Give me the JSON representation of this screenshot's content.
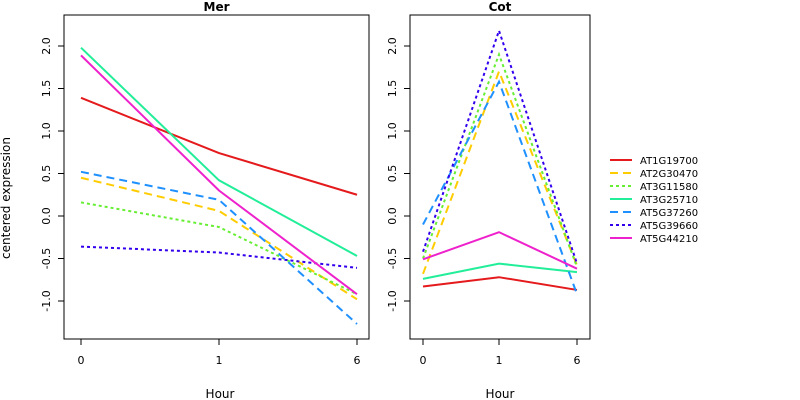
{
  "chart_data": {
    "type": "line",
    "ylabel": "centered expression",
    "x_categories": [
      "0",
      "1",
      "6"
    ],
    "ylim": [
      -1.4,
      2.3
    ],
    "yticks": [
      -1.0,
      -0.5,
      0.0,
      0.5,
      1.0,
      1.5,
      2.0
    ],
    "ytick_labels": [
      "-1.0",
      "-0.5",
      "0.0",
      "0.5",
      "1.0",
      "1.5",
      "2.0"
    ],
    "legend_position": "right",
    "series_styles": [
      {
        "name": "AT1G19700",
        "color": "#e41a1c",
        "dash": "solid"
      },
      {
        "name": "AT2G30470",
        "color": "#ffcc00",
        "dash": "dashed"
      },
      {
        "name": "AT3G11580",
        "color": "#66ee33",
        "dash": "dotted"
      },
      {
        "name": "AT3G25710",
        "color": "#22ee99",
        "dash": "solid"
      },
      {
        "name": "AT5G37260",
        "color": "#1e90ff",
        "dash": "dashed"
      },
      {
        "name": "AT5G39660",
        "color": "#3300ee",
        "dash": "dotted"
      },
      {
        "name": "AT5G44210",
        "color": "#ee22cc",
        "dash": "solid"
      }
    ],
    "panels": [
      {
        "title": "Mer",
        "xlabel": "Hour",
        "series": [
          {
            "name": "AT1G19700",
            "values": [
              1.39,
              0.74,
              0.25
            ]
          },
          {
            "name": "AT2G30470",
            "values": [
              0.45,
              0.06,
              -0.98
            ]
          },
          {
            "name": "AT3G11580",
            "values": [
              0.16,
              -0.13,
              -0.92
            ]
          },
          {
            "name": "AT3G25710",
            "values": [
              1.98,
              0.42,
              -0.47
            ]
          },
          {
            "name": "AT5G37260",
            "values": [
              0.52,
              0.19,
              -1.27
            ]
          },
          {
            "name": "AT5G39660",
            "values": [
              -0.36,
              -0.43,
              -0.61
            ]
          },
          {
            "name": "AT5G44210",
            "values": [
              1.89,
              0.3,
              -0.92
            ]
          }
        ]
      },
      {
        "title": "Cot",
        "xlabel": "Hour",
        "series": [
          {
            "name": "AT1G19700",
            "values": [
              -0.83,
              -0.72,
              -0.87
            ]
          },
          {
            "name": "AT2G30470",
            "values": [
              -0.68,
              1.7,
              -0.58
            ]
          },
          {
            "name": "AT3G11580",
            "values": [
              -0.5,
              1.9,
              -0.6
            ]
          },
          {
            "name": "AT3G25710",
            "values": [
              -0.74,
              -0.56,
              -0.66
            ]
          },
          {
            "name": "AT5G37260",
            "values": [
              -0.1,
              1.58,
              -0.92
            ]
          },
          {
            "name": "AT5G39660",
            "values": [
              -0.42,
              2.18,
              -0.56
            ]
          },
          {
            "name": "AT5G44210",
            "values": [
              -0.51,
              -0.19,
              -0.62
            ]
          }
        ]
      }
    ]
  }
}
